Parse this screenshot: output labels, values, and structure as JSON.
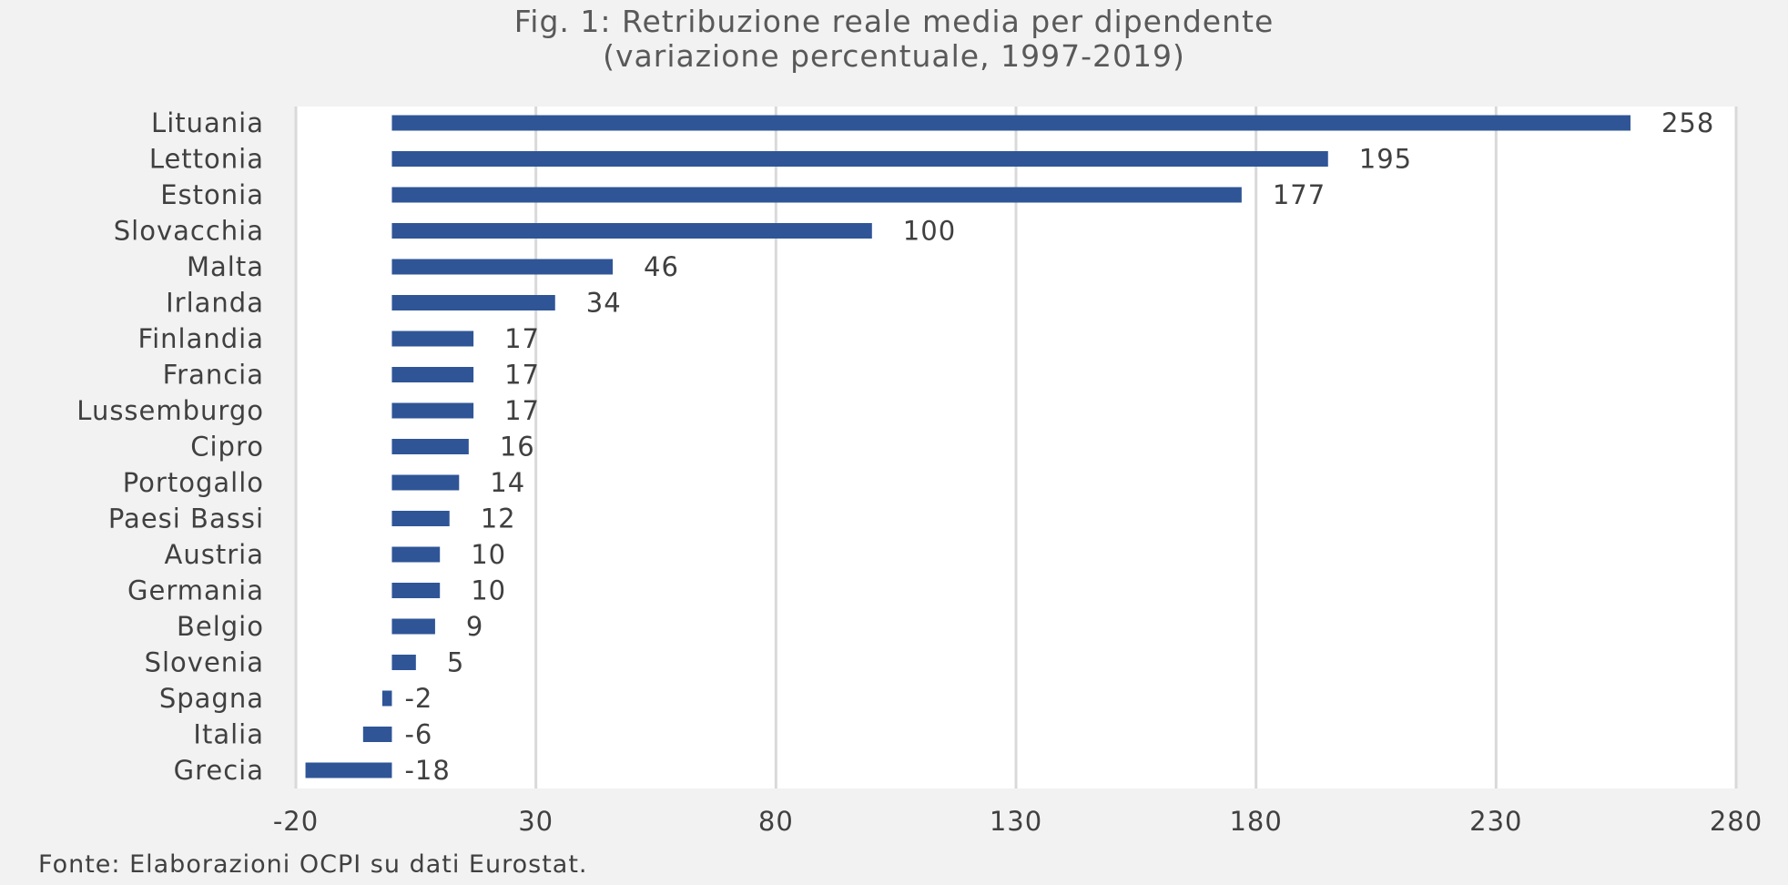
{
  "chart_data": {
    "type": "bar",
    "orientation": "horizontal",
    "title": "Fig. 1: Retribuzione reale media per dipendente",
    "subtitle": "(variazione percentuale, 1997-2019)",
    "categories": [
      "Lituania",
      "Lettonia",
      "Estonia",
      "Slovacchia",
      "Malta",
      "Irlanda",
      "Finlandia",
      "Francia",
      "Lussemburgo",
      "Cipro",
      "Portogallo",
      "Paesi Bassi",
      "Austria",
      "Germania",
      "Belgio",
      "Slovenia",
      "Spagna",
      "Italia",
      "Grecia"
    ],
    "values": [
      258,
      195,
      177,
      100,
      46,
      34,
      17,
      17,
      17,
      16,
      14,
      12,
      10,
      10,
      9,
      5,
      -2,
      -6,
      -18
    ],
    "xlim": [
      -20,
      280
    ],
    "xticks": [
      -20,
      30,
      80,
      130,
      180,
      230,
      280
    ],
    "xlabel": "",
    "ylabel": "",
    "grid": "vertical",
    "legend": "none",
    "bar_color": "#2f5597",
    "gridline_color": "#d9d9d9",
    "plot_background": "#ffffff",
    "source": "Fonte: Elaborazioni OCPI su dati Eurostat."
  }
}
